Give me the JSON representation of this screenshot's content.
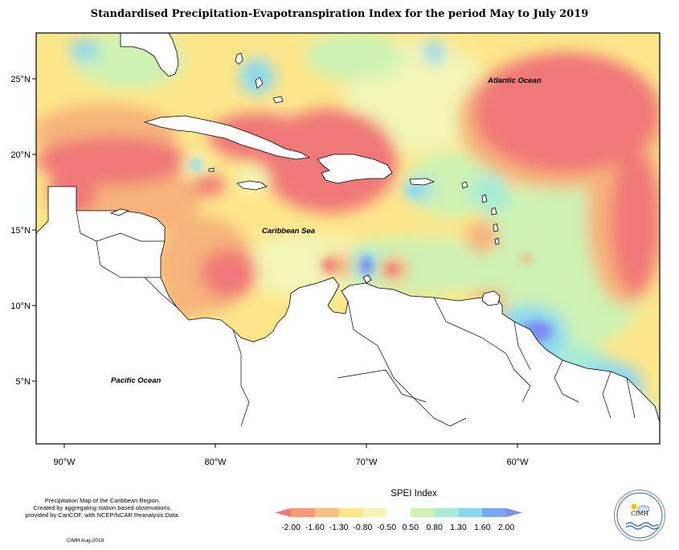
{
  "header": {
    "title": "Standardised Precipitation-Evapotranspiration Index for the period May to July 2019"
  },
  "map": {
    "labels": {
      "atlantic": "Atlantic Ocean",
      "caribbean": "Caribbean Sea",
      "pacific": "Pacific Ocean"
    },
    "lat_ticks": [
      "25°N",
      "20°N",
      "15°N",
      "10°N",
      "5°N"
    ],
    "lon_ticks": [
      "90°W",
      "80°W",
      "70°W",
      "60°W"
    ],
    "colors": {
      "very_dry": "#f07878",
      "dry": "#f6b27a",
      "moderate_dry": "#fde68a",
      "near_normal": "#f2f5b5",
      "slight_wet": "#cdf2b4",
      "moderate_wet": "#a8ecd6",
      "wet": "#8ad8f0",
      "very_wet": "#7b8ff0",
      "land": "#ffffff"
    }
  },
  "legend": {
    "title": "SPEI Index",
    "labels": [
      "-2.00",
      "-1.60",
      "-1.30",
      "-0.80",
      "-0.50",
      "0.50",
      "0.80",
      "1.30",
      "1.60",
      "2.00"
    ],
    "colors": [
      "#f07878",
      "#f59a7a",
      "#f8bf80",
      "#fde68a",
      "#f6f2b8",
      "#ffffff",
      "#cdf2b4",
      "#a8ecd6",
      "#8ad8f0",
      "#7aa8f0",
      "#7b8ff0"
    ]
  },
  "footnote": {
    "lines": [
      "Precipitation Map of the Caribbean Region.",
      "Created by aggregating station based observations,",
      "provided by CariCOF, with NCEP/NCAR Reanalysis Data."
    ],
    "credit": "CIMH Aug-2019"
  },
  "logo": {
    "text": "CIMH"
  }
}
